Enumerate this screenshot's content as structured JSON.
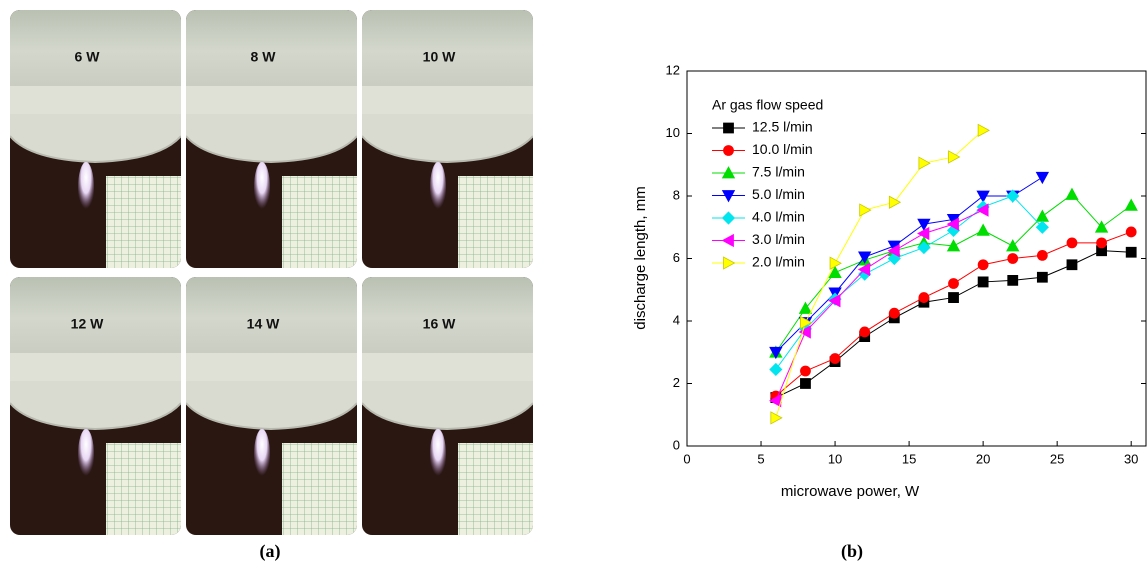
{
  "panels": [
    {
      "label": "6 W"
    },
    {
      "label": "8 W"
    },
    {
      "label": "10 W"
    },
    {
      "label": "12 W"
    },
    {
      "label": "14 W"
    },
    {
      "label": "16 W"
    }
  ],
  "captions": {
    "a": "(a)",
    "b": "(b)"
  },
  "chart_data": {
    "type": "line",
    "x_label": "microwave power, W",
    "y_label": "discharge length, mm",
    "legend_title": "Ar gas flow speed",
    "x": [
      6,
      8,
      10,
      12,
      14,
      16,
      18,
      20,
      22,
      24,
      26,
      28,
      30
    ],
    "series": [
      {
        "name": "12.5 l/min",
        "color": "#000000",
        "marker": "square",
        "values": [
          1.55,
          2.0,
          2.7,
          3.5,
          4.1,
          4.6,
          4.75,
          5.25,
          5.3,
          5.4,
          5.8,
          6.25,
          6.2
        ]
      },
      {
        "name": "10.0 l/min",
        "color": "#ff0000",
        "marker": "circle",
        "values": [
          1.6,
          2.4,
          2.8,
          3.65,
          4.25,
          4.75,
          5.2,
          5.8,
          6.0,
          6.1,
          6.5,
          6.5,
          6.85
        ]
      },
      {
        "name": "7.5 l/min",
        "color": "#00dd00",
        "marker": "triangle-up",
        "values": [
          3.0,
          4.4,
          5.55,
          5.95,
          6.25,
          6.5,
          6.4,
          6.9,
          6.4,
          7.35,
          8.05,
          7.0,
          7.7
        ]
      },
      {
        "name": "5.0 l/min",
        "color": "#0000ff",
        "marker": "triangle-down",
        "values": [
          3.0,
          3.95,
          4.9,
          6.05,
          6.4,
          7.1,
          7.25,
          8.0,
          8.0,
          8.6,
          null,
          null,
          null
        ]
      },
      {
        "name": "4.0 l/min",
        "color": "#00e5ee",
        "marker": "diamond",
        "values": [
          2.45,
          3.75,
          4.7,
          5.5,
          6.0,
          6.35,
          6.9,
          7.65,
          8.0,
          7.0,
          null,
          null,
          null
        ]
      },
      {
        "name": "3.0 l/min",
        "color": "#ff00ff",
        "marker": "triangle-left",
        "values": [
          1.45,
          3.65,
          4.65,
          5.65,
          6.25,
          6.8,
          7.1,
          7.55,
          null,
          null,
          null,
          null,
          null
        ]
      },
      {
        "name": "2.0 l/min",
        "color": "#ffff00",
        "marker": "triangle-right",
        "values": [
          0.9,
          3.95,
          5.85,
          7.55,
          7.8,
          9.05,
          9.25,
          10.1,
          null,
          null,
          null,
          null,
          null
        ]
      }
    ],
    "xlim": [
      0,
      31
    ],
    "xticks": [
      0,
      5,
      10,
      15,
      20,
      25,
      30
    ],
    "ylim": [
      0,
      12
    ],
    "yticks": [
      0,
      2,
      4,
      6,
      8,
      10,
      12
    ],
    "grid": false
  }
}
